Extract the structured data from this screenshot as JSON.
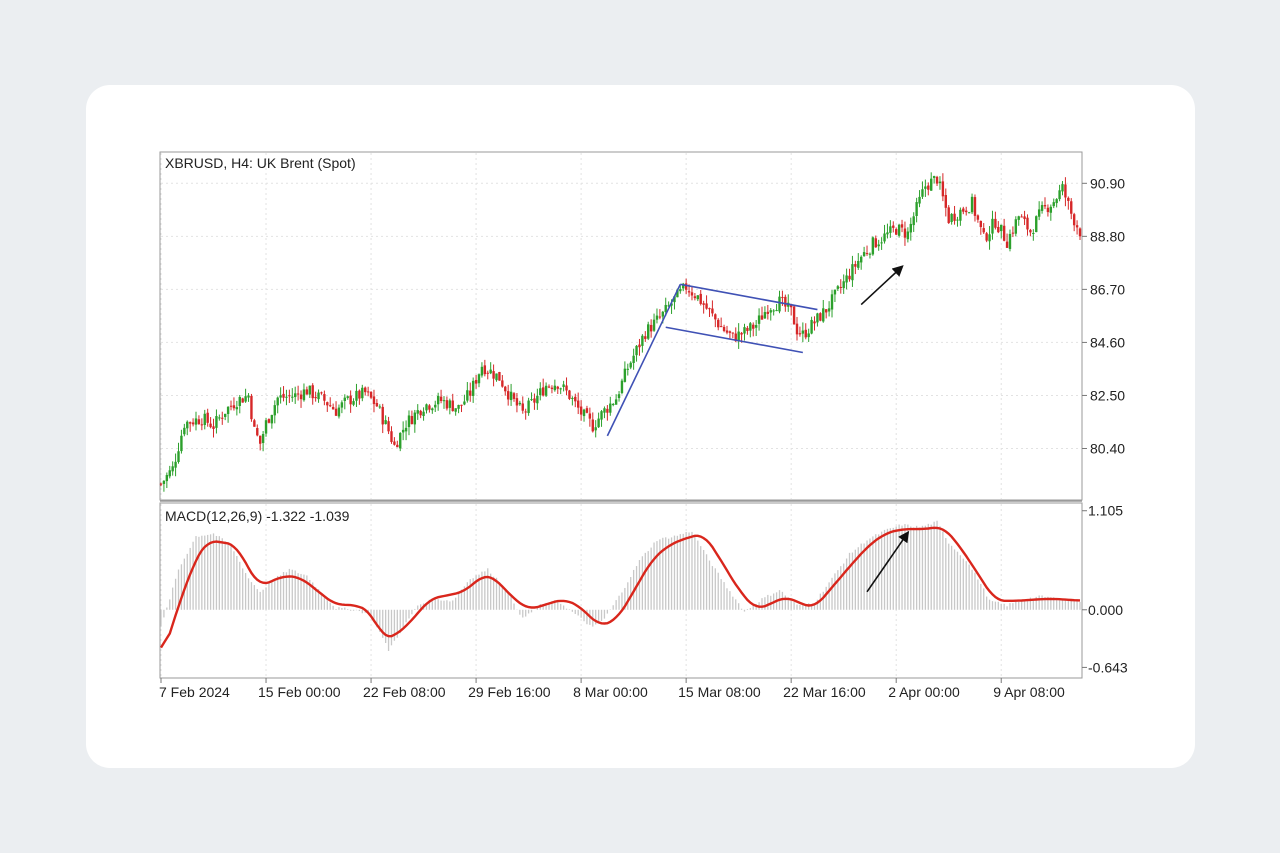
{
  "chart_data": [
    {
      "type": "candlestick",
      "title": "XBRUSD, H4:  UK Brent (Spot)",
      "symbol": "XBRUSD",
      "timeframe": "H4",
      "instrument": "UK Brent (Spot)",
      "ylim": [
        78.4,
        92.1
      ],
      "y_ticks": [
        "90.90",
        "88.80",
        "86.70",
        "84.60",
        "82.50",
        "80.40"
      ],
      "y_tick_values": [
        90.9,
        88.8,
        86.7,
        84.6,
        82.5,
        80.4
      ],
      "grid": true,
      "colors": {
        "up": "#2ca02c",
        "down": "#d62728",
        "annotation": "#3f51b5",
        "arrow": "#111111"
      },
      "anchors": [
        [
          0,
          79.0
        ],
        [
          4,
          79.6
        ],
        [
          8,
          81.4
        ],
        [
          14,
          81.6
        ],
        [
          18,
          81.3
        ],
        [
          22,
          81.9
        ],
        [
          26,
          82.3
        ],
        [
          30,
          82.5
        ],
        [
          32,
          81.1
        ],
        [
          34,
          80.6
        ],
        [
          36,
          81.4
        ],
        [
          40,
          82.4
        ],
        [
          46,
          82.5
        ],
        [
          50,
          82.7
        ],
        [
          56,
          82.3
        ],
        [
          60,
          81.9
        ],
        [
          64,
          82.3
        ],
        [
          70,
          82.6
        ],
        [
          74,
          82.1
        ],
        [
          78,
          81.1
        ],
        [
          80,
          80.5
        ],
        [
          84,
          81.4
        ],
        [
          90,
          82.1
        ],
        [
          96,
          82.3
        ],
        [
          102,
          82.0
        ],
        [
          106,
          82.6
        ],
        [
          110,
          83.7
        ],
        [
          116,
          83.2
        ],
        [
          120,
          82.4
        ],
        [
          124,
          81.8
        ],
        [
          128,
          82.3
        ],
        [
          132,
          82.9
        ],
        [
          136,
          83.0
        ],
        [
          140,
          82.5
        ],
        [
          144,
          81.8
        ],
        [
          148,
          81.3
        ],
        [
          152,
          81.9
        ],
        [
          156,
          82.4
        ],
        [
          160,
          83.6
        ],
        [
          166,
          85.0
        ],
        [
          172,
          85.7
        ],
        [
          176,
          86.3
        ],
        [
          180,
          86.8
        ],
        [
          184,
          86.4
        ],
        [
          188,
          85.8
        ],
        [
          192,
          85.2
        ],
        [
          196,
          84.8
        ],
        [
          200,
          85.0
        ],
        [
          204,
          85.3
        ],
        [
          208,
          86.0
        ],
        [
          212,
          86.2
        ],
        [
          216,
          85.8
        ],
        [
          218,
          85.1
        ],
        [
          220,
          84.9
        ],
        [
          224,
          85.4
        ],
        [
          228,
          85.9
        ],
        [
          232,
          86.6
        ],
        [
          236,
          87.3
        ],
        [
          240,
          88.0
        ],
        [
          244,
          88.5
        ],
        [
          248,
          88.8
        ],
        [
          252,
          89.1
        ],
        [
          256,
          88.9
        ],
        [
          258,
          89.6
        ],
        [
          262,
          90.8
        ],
        [
          266,
          91.1
        ],
        [
          270,
          89.5
        ],
        [
          274,
          89.8
        ],
        [
          278,
          90.1
        ],
        [
          282,
          88.7
        ],
        [
          286,
          89.4
        ],
        [
          290,
          88.6
        ],
        [
          294,
          89.6
        ],
        [
          298,
          89.0
        ],
        [
          302,
          89.8
        ],
        [
          306,
          90.2
        ],
        [
          309,
          90.7
        ],
        [
          312,
          89.7
        ],
        [
          315,
          89.0
        ]
      ],
      "patterns": [
        {
          "type": "flagpole",
          "from": [
            153,
            80.9
          ],
          "to": [
            178,
            86.9
          ]
        },
        {
          "type": "flag-upper",
          "from": [
            178,
            86.9
          ],
          "to": [
            225,
            85.9
          ]
        },
        {
          "type": "flag-lower",
          "from": [
            173,
            85.2
          ],
          "to": [
            220,
            84.2
          ]
        },
        {
          "type": "breakout-arrow",
          "from": [
            240,
            86.1
          ],
          "to": [
            254,
            87.6
          ]
        }
      ]
    },
    {
      "type": "histogram+line",
      "title": "MACD(12,26,9) -1.322 -1.039",
      "indicator": "MACD",
      "parameters": [
        12,
        26,
        9
      ],
      "values_shown": [
        -1.322,
        -1.039
      ],
      "ylim": [
        -0.75,
        1.18
      ],
      "y_ticks": [
        "1.105",
        "0.000",
        "-0.643"
      ],
      "y_tick_values": [
        1.105,
        0.0,
        -0.643
      ],
      "colors": {
        "histogram": "#c8c8c8",
        "signal": "#d9261c",
        "arrow": "#111111"
      },
      "histogram_anchors": [
        [
          0,
          -0.2
        ],
        [
          6,
          0.45
        ],
        [
          12,
          0.82
        ],
        [
          18,
          0.85
        ],
        [
          24,
          0.72
        ],
        [
          30,
          0.35
        ],
        [
          34,
          0.2
        ],
        [
          38,
          0.32
        ],
        [
          44,
          0.45
        ],
        [
          50,
          0.38
        ],
        [
          56,
          0.15
        ],
        [
          60,
          0.02
        ],
        [
          66,
          0.0
        ],
        [
          72,
          -0.05
        ],
        [
          78,
          -0.45
        ],
        [
          82,
          -0.25
        ],
        [
          88,
          0.05
        ],
        [
          94,
          0.12
        ],
        [
          100,
          0.1
        ],
        [
          106,
          0.35
        ],
        [
          112,
          0.45
        ],
        [
          118,
          0.25
        ],
        [
          124,
          -0.1
        ],
        [
          130,
          0.05
        ],
        [
          136,
          0.1
        ],
        [
          142,
          -0.05
        ],
        [
          148,
          -0.2
        ],
        [
          152,
          -0.1
        ],
        [
          158,
          0.2
        ],
        [
          164,
          0.55
        ],
        [
          170,
          0.78
        ],
        [
          176,
          0.82
        ],
        [
          182,
          0.88
        ],
        [
          188,
          0.55
        ],
        [
          194,
          0.25
        ],
        [
          200,
          -0.02
        ],
        [
          206,
          0.12
        ],
        [
          212,
          0.22
        ],
        [
          218,
          0.05
        ],
        [
          224,
          0.08
        ],
        [
          230,
          0.35
        ],
        [
          236,
          0.62
        ],
        [
          242,
          0.78
        ],
        [
          248,
          0.88
        ],
        [
          254,
          0.95
        ],
        [
          260,
          0.92
        ],
        [
          266,
          0.98
        ],
        [
          270,
          0.75
        ],
        [
          276,
          0.55
        ],
        [
          280,
          0.35
        ],
        [
          284,
          0.1
        ],
        [
          290,
          0.05
        ],
        [
          296,
          0.12
        ],
        [
          302,
          0.15
        ],
        [
          308,
          0.12
        ],
        [
          315,
          0.1
        ]
      ],
      "signal_anchors": [
        [
          0,
          -0.58
        ],
        [
          6,
          0.05
        ],
        [
          12,
          0.58
        ],
        [
          16,
          0.77
        ],
        [
          20,
          0.76
        ],
        [
          26,
          0.72
        ],
        [
          30,
          0.45
        ],
        [
          34,
          0.26
        ],
        [
          38,
          0.32
        ],
        [
          42,
          0.38
        ],
        [
          48,
          0.36
        ],
        [
          54,
          0.2
        ],
        [
          60,
          0.05
        ],
        [
          66,
          0.06
        ],
        [
          72,
          -0.02
        ],
        [
          76,
          -0.32
        ],
        [
          80,
          -0.3
        ],
        [
          86,
          -0.12
        ],
        [
          92,
          0.12
        ],
        [
          98,
          0.16
        ],
        [
          104,
          0.2
        ],
        [
          110,
          0.38
        ],
        [
          114,
          0.37
        ],
        [
          120,
          0.15
        ],
        [
          126,
          0.0
        ],
        [
          132,
          0.06
        ],
        [
          138,
          0.12
        ],
        [
          144,
          0.03
        ],
        [
          150,
          -0.18
        ],
        [
          156,
          -0.12
        ],
        [
          162,
          0.2
        ],
        [
          168,
          0.55
        ],
        [
          174,
          0.72
        ],
        [
          180,
          0.8
        ],
        [
          186,
          0.85
        ],
        [
          192,
          0.55
        ],
        [
          198,
          0.22
        ],
        [
          204,
          0.0
        ],
        [
          210,
          0.08
        ],
        [
          214,
          0.15
        ],
        [
          220,
          0.06
        ],
        [
          224,
          0.02
        ],
        [
          230,
          0.25
        ],
        [
          236,
          0.48
        ],
        [
          242,
          0.7
        ],
        [
          248,
          0.85
        ],
        [
          254,
          0.9
        ],
        [
          262,
          0.9
        ],
        [
          268,
          0.93
        ],
        [
          274,
          0.7
        ],
        [
          280,
          0.4
        ],
        [
          286,
          0.1
        ],
        [
          294,
          0.1
        ],
        [
          302,
          0.12
        ],
        [
          308,
          0.12
        ],
        [
          315,
          0.1
        ]
      ],
      "patterns": [
        {
          "type": "trend-arrow",
          "from": [
            242,
            0.2
          ],
          "to": [
            256,
            0.86
          ]
        }
      ]
    }
  ],
  "x_axis": {
    "ticks": [
      "7 Feb 2024",
      "15 Feb 00:00",
      "22 Feb 08:00",
      "29 Feb 16:00",
      "8 Mar 00:00",
      "15 Mar 08:00",
      "22 Mar 16:00",
      "2 Apr 00:00",
      "9 Apr 08:00"
    ],
    "tick_bars": [
      0,
      36,
      72,
      108,
      144,
      180,
      216,
      252,
      288
    ]
  }
}
